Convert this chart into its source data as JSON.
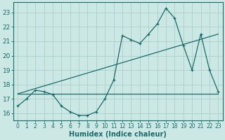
{
  "xlabel": "Humidex (Indice chaleur)",
  "bg_color": "#cce8e4",
  "line_color": "#1a6b6b",
  "grid_color": "#aacfcc",
  "xlim": [
    -0.5,
    23.5
  ],
  "ylim": [
    15.5,
    23.7
  ],
  "yticks": [
    16,
    17,
    18,
    19,
    20,
    21,
    22,
    23
  ],
  "xticks": [
    0,
    1,
    2,
    3,
    4,
    5,
    6,
    7,
    8,
    9,
    10,
    11,
    12,
    13,
    14,
    15,
    16,
    17,
    18,
    19,
    20,
    21,
    22,
    23
  ],
  "main_x": [
    0,
    1,
    2,
    3,
    4,
    5,
    6,
    7,
    8,
    9,
    10,
    11,
    12,
    13,
    14,
    15,
    16,
    17,
    18,
    19,
    20,
    21,
    22,
    23
  ],
  "main_y": [
    16.5,
    17.0,
    17.6,
    17.5,
    17.3,
    16.5,
    16.1,
    15.85,
    15.85,
    16.1,
    17.0,
    18.3,
    21.4,
    21.1,
    20.85,
    21.5,
    22.2,
    23.3,
    22.6,
    20.7,
    19.0,
    21.5,
    19.0,
    17.5
  ],
  "flat_line_x": [
    0,
    23
  ],
  "flat_line_y": [
    17.35,
    17.35
  ],
  "diag_line_x": [
    0,
    23
  ],
  "diag_line_y": [
    17.35,
    21.5
  ]
}
